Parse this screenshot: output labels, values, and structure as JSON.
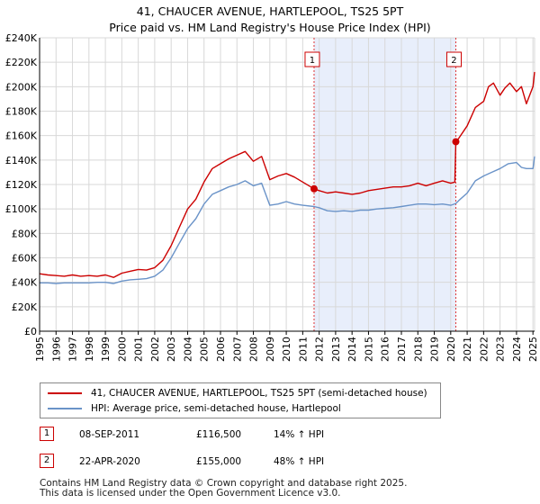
{
  "chart_data": {
    "type": "line",
    "title": "41, CHAUCER AVENUE, HARTLEPOOL, TS25 5PT",
    "subtitle": "Price paid vs. HM Land Registry's House Price Index (HPI)",
    "xlim": [
      1995,
      2025.1
    ],
    "ylim": [
      0,
      240000
    ],
    "y_ticks": [
      {
        "value": 0,
        "label": "£0"
      },
      {
        "value": 20000,
        "label": "£20K"
      },
      {
        "value": 40000,
        "label": "£40K"
      },
      {
        "value": 60000,
        "label": "£60K"
      },
      {
        "value": 80000,
        "label": "£80K"
      },
      {
        "value": 100000,
        "label": "£100K"
      },
      {
        "value": 120000,
        "label": "£120K"
      },
      {
        "value": 140000,
        "label": "£140K"
      },
      {
        "value": 160000,
        "label": "£160K"
      },
      {
        "value": 180000,
        "label": "£180K"
      },
      {
        "value": 200000,
        "label": "£200K"
      },
      {
        "value": 220000,
        "label": "£220K"
      },
      {
        "value": 240000,
        "label": "£240K"
      }
    ],
    "x_ticks": [
      "1995",
      "1996",
      "1997",
      "1998",
      "1999",
      "2000",
      "2001",
      "2002",
      "2003",
      "2004",
      "2005",
      "2006",
      "2007",
      "2008",
      "2009",
      "2010",
      "2011",
      "2012",
      "2013",
      "2014",
      "2015",
      "2016",
      "2017",
      "2018",
      "2019",
      "2020",
      "2021",
      "2022",
      "2023",
      "2024",
      "2025"
    ],
    "shaded_range": [
      2011.69,
      2020.31
    ],
    "series": [
      {
        "name": "41, CHAUCER AVENUE, HARTLEPOOL, TS25 5PT (semi-detached house)",
        "color": "#cc0000",
        "x": [
          1995,
          1995.5,
          1996,
          1996.5,
          1997,
          1997.5,
          1998,
          1998.5,
          1999,
          1999.5,
          2000,
          2000.5,
          2001,
          2001.5,
          2002,
          2002.5,
          2003,
          2003.5,
          2004,
          2004.5,
          2005,
          2005.5,
          2006,
          2006.5,
          2007,
          2007.5,
          2008,
          2008.5,
          2009,
          2009.5,
          2010,
          2010.5,
          2011,
          2011.69,
          2012,
          2012.5,
          2013,
          2013.5,
          2014,
          2014.5,
          2015,
          2015.5,
          2016,
          2016.5,
          2017,
          2017.5,
          2018,
          2018.5,
          2019,
          2019.5,
          2020.0,
          2020.25,
          2020.31,
          2020.5,
          2021,
          2021.5,
          2022,
          2022.3,
          2022.6,
          2023,
          2023.3,
          2023.6,
          2024,
          2024.3,
          2024.6,
          2025,
          2025.1
        ],
        "values": [
          47000,
          46000,
          45500,
          45000,
          46000,
          45000,
          45500,
          45000,
          46000,
          44000,
          47500,
          49000,
          50500,
          50000,
          52000,
          58000,
          70000,
          85000,
          100000,
          108000,
          122000,
          133000,
          137000,
          141000,
          144000,
          147000,
          139000,
          143000,
          124000,
          127000,
          129000,
          126000,
          122000,
          116500,
          115000,
          113000,
          114000,
          113000,
          112000,
          113000,
          115000,
          116000,
          117000,
          118000,
          118000,
          119000,
          121000,
          119000,
          121000,
          123000,
          121000,
          122000,
          155000,
          158000,
          168000,
          183000,
          188000,
          200000,
          203000,
          193000,
          199000,
          203000,
          196000,
          200000,
          186000,
          200000,
          212000
        ]
      },
      {
        "name": "HPI: Average price, semi-detached house, Hartlepool",
        "color": "#6a93c8",
        "x": [
          1995,
          1995.5,
          1996,
          1996.5,
          1997,
          1997.5,
          1998,
          1998.5,
          1999,
          1999.5,
          2000,
          2000.5,
          2001,
          2001.5,
          2002,
          2002.5,
          2003,
          2003.5,
          2004,
          2004.5,
          2005,
          2005.5,
          2006,
          2006.5,
          2007,
          2007.5,
          2008,
          2008.5,
          2009,
          2009.5,
          2010,
          2010.5,
          2011,
          2011.69,
          2012,
          2012.5,
          2013,
          2013.5,
          2014,
          2014.5,
          2015,
          2015.5,
          2016,
          2016.5,
          2017,
          2017.5,
          2018,
          2018.5,
          2019,
          2019.5,
          2020.0,
          2020.31,
          2020.5,
          2021,
          2021.5,
          2022,
          2022.5,
          2023,
          2023.5,
          2024,
          2024.3,
          2024.6,
          2025,
          2025.1
        ],
        "values": [
          39500,
          39500,
          39000,
          39500,
          39500,
          39500,
          39500,
          40000,
          40000,
          39000,
          41000,
          42000,
          42500,
          43000,
          45000,
          50000,
          60000,
          72000,
          84000,
          92000,
          104000,
          112000,
          115000,
          118000,
          120000,
          123000,
          119000,
          121000,
          103000,
          104000,
          106000,
          104000,
          103000,
          102000,
          101000,
          98500,
          98000,
          98500,
          98000,
          99000,
          99000,
          100000,
          100500,
          101000,
          102000,
          103000,
          104000,
          104000,
          103500,
          104000,
          103000,
          104500,
          107000,
          113000,
          123000,
          127000,
          130000,
          133000,
          137000,
          138000,
          134000,
          133000,
          133000,
          143000
        ]
      }
    ],
    "markers": [
      {
        "id": "1",
        "x": 2011.69,
        "y": 116500
      },
      {
        "id": "2",
        "x": 2020.31,
        "y": 155000
      }
    ]
  },
  "legend": {
    "property_label": "41, CHAUCER AVENUE, HARTLEPOOL, TS25 5PT (semi-detached house)",
    "hpi_label": "HPI: Average price, semi-detached house, Hartlepool"
  },
  "sales": [
    {
      "badge": "1",
      "date": "08-SEP-2011",
      "price": "£116,500",
      "hpi_change": "14% ↑ HPI"
    },
    {
      "badge": "2",
      "date": "22-APR-2020",
      "price": "£155,000",
      "hpi_change": "48% ↑ HPI"
    }
  ],
  "footer": {
    "line1": "Contains HM Land Registry data © Crown copyright and database right 2025.",
    "line2": "This data is licensed under the Open Government Licence v3.0."
  },
  "colors": {
    "property": "#cc0000",
    "hpi": "#6a93c8",
    "shade": "#e8eefb"
  }
}
